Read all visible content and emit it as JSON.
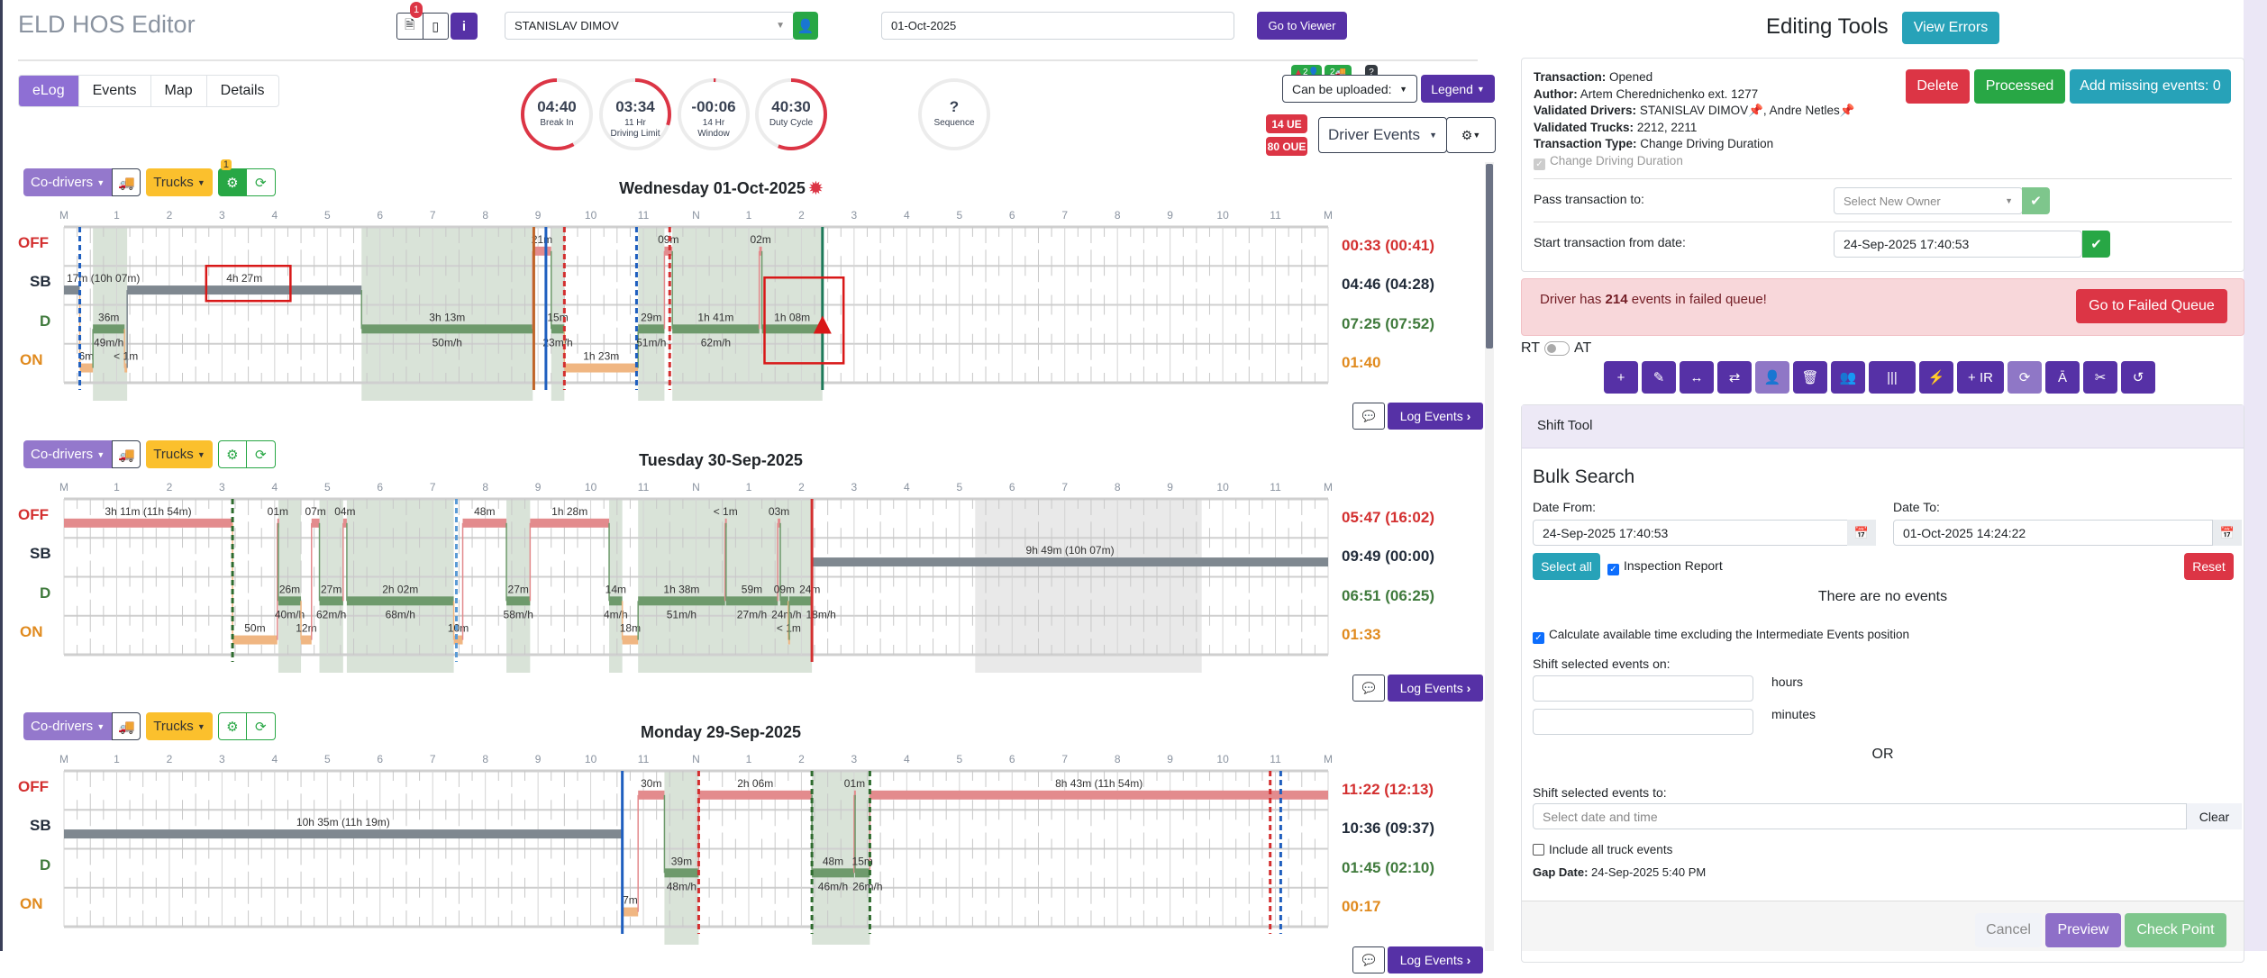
{
  "header": {
    "title": "ELD HOS Editor",
    "notes_badge": "1",
    "driver": "STANISLAV DIMOV",
    "date": "01-Oct-2025",
    "go_to_viewer": "Go to Viewer"
  },
  "tabs": [
    "eLog",
    "Events",
    "Map",
    "Details"
  ],
  "gauges": [
    {
      "value": "04:40",
      "label": "Break In",
      "fraction": 0.58
    },
    {
      "value": "03:34",
      "label": "11 Hr\nDriving Limit",
      "fraction": 0.3
    },
    {
      "value": "-00:06",
      "label": "14 Hr\nWindow",
      "fraction": 0.01
    },
    {
      "value": "40:30",
      "label": "Duty Cycle",
      "fraction": 0.56
    },
    {
      "value": "?",
      "label": "Sequence",
      "fraction": 0
    }
  ],
  "status_badges": {
    "co": "2",
    "truck": "2",
    "unknown": "?"
  },
  "upload_select": "Can be uploaded:",
  "legend": "Legend",
  "ue": "14 UE",
  "oue": "80 OUE",
  "events_select": "Driver Events",
  "rows": [
    "OFF",
    "SB",
    "D",
    "ON"
  ],
  "hours": [
    "M",
    "1",
    "2",
    "3",
    "4",
    "5",
    "6",
    "7",
    "8",
    "9",
    "10",
    "11",
    "N",
    "1",
    "2",
    "3",
    "4",
    "5",
    "6",
    "7",
    "8",
    "9",
    "10",
    "11",
    "M"
  ],
  "day_toolbar": {
    "codrivers": "Co-drivers",
    "trucks": "Trucks",
    "engine_badge": "1",
    "log_events": "Log Events"
  },
  "colors": {
    "OFF": "#e38b8d",
    "SB": "#7f8890",
    "D": "#6e9a6c",
    "ON": "#f0b682",
    "shade": "#d9e3d8",
    "gray": "#e9e9e9",
    "offText": "#d32f2f",
    "sbText": "#222c3a",
    "dText": "#3f7a3c",
    "onText": "#e08a1e"
  },
  "days": [
    {
      "title": "Wednesday 01-Oct-2025",
      "totals": [
        "00:33 (00:41)",
        "04:46 (04:28)",
        "07:25 (07:52)",
        "01:40"
      ],
      "segments": [
        {
          "s": "SB",
          "a": 0,
          "b": 0.3,
          "label": "17m (10h 07m)"
        },
        {
          "s": "ON",
          "a": 0.3,
          "b": 0.55,
          "label": "6m"
        },
        {
          "s": "D",
          "a": 0.55,
          "b": 1.15,
          "label": "36m",
          "speed": "49m/h"
        },
        {
          "s": "ON",
          "a": 1.15,
          "b": 1.2,
          "label": "< 1m"
        },
        {
          "s": "SB",
          "a": 1.2,
          "b": 5.65,
          "label": "4h 27m"
        },
        {
          "s": "D",
          "a": 5.65,
          "b": 8.9,
          "label": "3h 13m",
          "speed": "50m/h"
        },
        {
          "s": "OFF",
          "a": 8.9,
          "b": 9.25,
          "label": "21m"
        },
        {
          "s": "D",
          "a": 9.25,
          "b": 9.5,
          "label": "15m",
          "speed": "23m/h"
        },
        {
          "s": "ON",
          "a": 9.5,
          "b": 10.9,
          "label": "1h 23m"
        },
        {
          "s": "D",
          "a": 10.9,
          "b": 11.4,
          "label": "29m",
          "speed": "51m/h"
        },
        {
          "s": "OFF",
          "a": 11.4,
          "b": 11.55,
          "label": "09m"
        },
        {
          "s": "D",
          "a": 11.55,
          "b": 13.2,
          "label": "1h 41m",
          "speed": "62m/h"
        },
        {
          "s": "OFF",
          "a": 13.2,
          "b": 13.25,
          "label": "02m"
        },
        {
          "s": "D",
          "a": 13.25,
          "b": 14.4,
          "label": "1h 08m"
        }
      ],
      "shaded": [
        [
          0.55,
          1.2
        ],
        [
          5.65,
          8.9
        ],
        [
          9.25,
          9.5
        ],
        [
          10.9,
          11.4
        ],
        [
          11.55,
          14.4
        ]
      ],
      "gray": [],
      "lines": [
        {
          "h": 0.3,
          "c": "#1f5fbf",
          "d": true
        },
        {
          "h": 8.92,
          "c": "#c0652a",
          "d": false
        },
        {
          "h": 9.15,
          "c": "#1f5fbf",
          "d": false
        },
        {
          "h": 9.5,
          "c": "#d32f2f",
          "d": true
        },
        {
          "h": 10.87,
          "c": "#1f5fbf",
          "d": true
        },
        {
          "h": 11.5,
          "c": "#d32f2f",
          "d": true
        },
        {
          "h": 14.4,
          "c": "#1e7a5a",
          "d": false
        }
      ],
      "highlights": [
        [
          2.7,
          4.3,
          1,
          1.9
        ],
        [
          13.3,
          14.8,
          1.3,
          3.5
        ]
      ]
    },
    {
      "title": "Tuesday 30-Sep-2025",
      "totals": [
        "05:47 (16:02)",
        "09:49 (00:00)",
        "06:51 (06:25)",
        "01:33"
      ],
      "segments": [
        {
          "s": "OFF",
          "a": 0,
          "b": 3.2,
          "label": "3h 11m (11h 54m)"
        },
        {
          "s": "ON",
          "a": 3.2,
          "b": 4.05,
          "label": "50m"
        },
        {
          "s": "OFF",
          "a": 4.05,
          "b": 4.07,
          "label": "01m"
        },
        {
          "s": "D",
          "a": 4.07,
          "b": 4.5,
          "label": "26m",
          "speed": "40m/h"
        },
        {
          "s": "ON",
          "a": 4.5,
          "b": 4.7,
          "label": "12m"
        },
        {
          "s": "OFF",
          "a": 4.7,
          "b": 4.85,
          "label": "07m"
        },
        {
          "s": "D",
          "a": 4.85,
          "b": 5.3,
          "label": "27m",
          "speed": "62m/h"
        },
        {
          "s": "OFF",
          "a": 5.3,
          "b": 5.37,
          "label": "04m"
        },
        {
          "s": "D",
          "a": 5.37,
          "b": 7.4,
          "label": "2h 02m",
          "speed": "68m/h"
        },
        {
          "s": "ON",
          "a": 7.4,
          "b": 7.57,
          "label": "10m"
        },
        {
          "s": "OFF",
          "a": 7.57,
          "b": 8.4,
          "label": "48m"
        },
        {
          "s": "D",
          "a": 8.4,
          "b": 8.85,
          "label": "27m",
          "speed": "58m/h"
        },
        {
          "s": "OFF",
          "a": 8.85,
          "b": 10.35,
          "label": "1h 28m"
        },
        {
          "s": "D",
          "a": 10.35,
          "b": 10.6,
          "label": "14m",
          "speed": "4m/h"
        },
        {
          "s": "ON",
          "a": 10.6,
          "b": 10.9,
          "label": "18m"
        },
        {
          "s": "D",
          "a": 10.9,
          "b": 12.55,
          "label": "1h 38m",
          "speed": "51m/h"
        },
        {
          "s": "OFF",
          "a": 12.55,
          "b": 12.57,
          "label": "< 1m"
        },
        {
          "s": "D",
          "a": 12.57,
          "b": 13.55,
          "label": "59m",
          "speed": "27m/h"
        },
        {
          "s": "OFF",
          "a": 13.55,
          "b": 13.6,
          "label": "03m"
        },
        {
          "s": "D",
          "a": 13.6,
          "b": 13.75,
          "label": "09m",
          "speed": "24m/h"
        },
        {
          "s": "ON",
          "a": 13.75,
          "b": 13.77,
          "label": "< 1m"
        },
        {
          "s": "D",
          "a": 13.77,
          "b": 14.2,
          "label": "24m",
          "speed": "18m/h"
        },
        {
          "s": "SB",
          "a": 14.2,
          "b": 24,
          "label": "9h 49m (10h 07m)"
        }
      ],
      "shaded": [
        [
          4.07,
          4.5
        ],
        [
          4.85,
          5.3
        ],
        [
          5.37,
          7.4
        ],
        [
          8.4,
          8.85
        ],
        [
          10.35,
          10.6
        ],
        [
          10.9,
          14.2
        ]
      ],
      "gray": [
        [
          17.3,
          21.6
        ]
      ],
      "lines": [
        {
          "h": 3.2,
          "c": "#2e6b2e",
          "d": true
        },
        {
          "h": 7.45,
          "c": "#5b9bd5",
          "d": true
        },
        {
          "h": 14.2,
          "c": "#d32f2f",
          "d": false
        }
      ],
      "highlights": []
    },
    {
      "title": "Monday 29-Sep-2025",
      "totals": [
        "11:22 (12:13)",
        "10:36 (09:37)",
        "01:45 (02:10)",
        "00:17"
      ],
      "segments": [
        {
          "s": "SB",
          "a": 0,
          "b": 10.6,
          "label": "10h 35m (11h 19m)"
        },
        {
          "s": "ON",
          "a": 10.6,
          "b": 10.9,
          "label": "7m"
        },
        {
          "s": "OFF",
          "a": 10.9,
          "b": 11.4,
          "label": "30m"
        },
        {
          "s": "D",
          "a": 11.4,
          "b": 12.05,
          "label": "39m",
          "speed": "48m/h"
        },
        {
          "s": "OFF",
          "a": 12.05,
          "b": 14.2,
          "label": "2h 06m"
        },
        {
          "s": "D",
          "a": 14.2,
          "b": 15.0,
          "label": "48m",
          "speed": "46m/h"
        },
        {
          "s": "OFF",
          "a": 15.0,
          "b": 15.02,
          "label": "01m"
        },
        {
          "s": "D",
          "a": 15.02,
          "b": 15.3,
          "label": "15m",
          "speed": "26m/h"
        },
        {
          "s": "OFF",
          "a": 15.3,
          "b": 24,
          "label": "8h 43m (11h 54m)"
        }
      ],
      "shaded": [
        [
          11.4,
          12.05
        ],
        [
          14.2,
          15.3
        ]
      ],
      "gray": [],
      "lines": [
        {
          "h": 10.6,
          "c": "#1f5fbf",
          "d": false
        },
        {
          "h": 12.05,
          "c": "#d32f2f",
          "d": true
        },
        {
          "h": 14.2,
          "c": "#2e6b2e",
          "d": true
        },
        {
          "h": 15.3,
          "c": "#2e6b2e",
          "d": true
        },
        {
          "h": 22.9,
          "c": "#d32f2f",
          "d": true
        },
        {
          "h": 23.1,
          "c": "#1f5fbf",
          "d": true
        }
      ],
      "highlights": []
    }
  ],
  "right": {
    "title": "Editing Tools",
    "view_errors": "View Errors",
    "transaction": {
      "k1": "Transaction:",
      "v1": "Opened",
      "k2": "Author:",
      "v2": "Artem Cherednichenko ext. 1277",
      "k3": "Validated Drivers:",
      "v3": "STANISLAV DIMOV",
      "v3b": ", Andre Netles",
      "k4": "Validated Trucks:",
      "v4": "2212, 2211",
      "k5": "Transaction Type:",
      "v5": "Change Driving Duration",
      "check": "Change Driving Duration"
    },
    "delete": "Delete",
    "processed": "Processed",
    "add_missing": "Add missing events: 0",
    "pass_label": "Pass transaction to:",
    "pass_placeholder": "Select New Owner",
    "start_label": "Start transaction from date:",
    "start_value": "24-Sep-2025 17:40:53",
    "alert_pre": "Driver has ",
    "alert_count": "214",
    "alert_post": " events in failed queue!",
    "failed_queue": "Go to Failed Queue",
    "rt": "RT",
    "at": "AT",
    "tools": [
      "+",
      "✎",
      "↔",
      "⇄",
      "👤",
      "🗑",
      "👥",
      "|||",
      "⚡",
      "+ IR",
      "⟳",
      "Ā",
      "✂",
      "↺"
    ],
    "shift_tool": "Shift Tool",
    "bulk_search": "Bulk Search",
    "date_from_label": "Date From:",
    "date_from": "24-Sep-2025 17:40:53",
    "date_to_label": "Date To:",
    "date_to": "01-Oct-2025 14:24:22",
    "select_all": "Select all",
    "inspection": "Inspection Report",
    "reset": "Reset",
    "no_events": "There are no events",
    "calc": "Calculate available time excluding the Intermediate Events position",
    "shift_on": "Shift selected events on:",
    "hours": "hours",
    "minutes": "minutes",
    "or": "OR",
    "shift_to": "Shift selected events to:",
    "shift_to_placeholder": "Select date and time",
    "clear": "Clear",
    "include_truck": "Include all truck events",
    "gap_key": "Gap Date:",
    "gap_value": "24-Sep-2025 5:40 PM",
    "cancel": "Cancel",
    "preview": "Preview",
    "checkpoint": "Check Point"
  }
}
